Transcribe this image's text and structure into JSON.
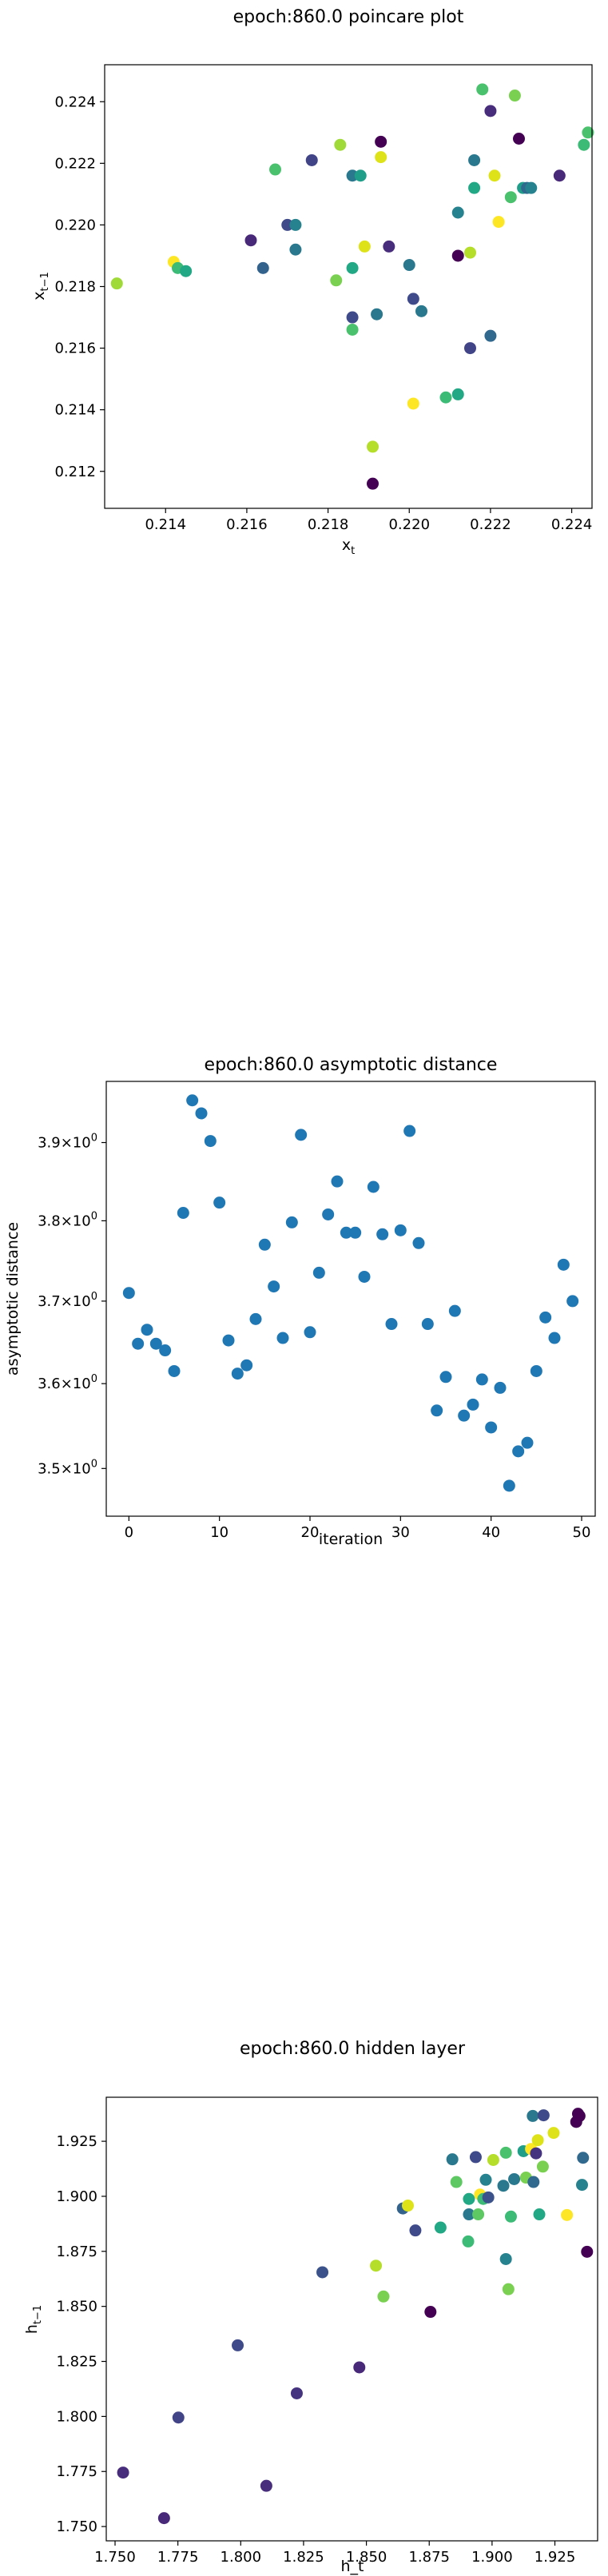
{
  "chart_data": [
    {
      "type": "scatter",
      "title": "epoch:860.0 poincare plot",
      "xlabel_main": "x",
      "xlabel_sub": "t",
      "ylabel_main": "x",
      "ylabel_sub": "t−1",
      "xlim": [
        0.2125,
        0.2245
      ],
      "ylim": [
        0.2108,
        0.2252
      ],
      "xticks": [
        0.214,
        0.216,
        0.218,
        0.22,
        0.222,
        0.224
      ],
      "xtick_labels": [
        "0.214",
        "0.216",
        "0.218",
        "0.220",
        "0.222",
        "0.224"
      ],
      "yticks": [
        0.212,
        0.214,
        0.216,
        0.218,
        0.22,
        0.222,
        0.224
      ],
      "ytick_labels": [
        "0.212",
        "0.214",
        "0.216",
        "0.218",
        "0.220",
        "0.222",
        "0.224"
      ],
      "points": [
        {
          "x": 0.2128,
          "y": 0.2181,
          "color": "#a0da39"
        },
        {
          "x": 0.2142,
          "y": 0.2188,
          "color": "#fde725"
        },
        {
          "x": 0.2143,
          "y": 0.2186,
          "color": "#3bbb75"
        },
        {
          "x": 0.2145,
          "y": 0.2185,
          "color": "#22a884"
        },
        {
          "x": 0.2161,
          "y": 0.2195,
          "color": "#482878"
        },
        {
          "x": 0.2164,
          "y": 0.2186,
          "color": "#33638d"
        },
        {
          "x": 0.2167,
          "y": 0.2218,
          "color": "#4ac16d"
        },
        {
          "x": 0.217,
          "y": 0.22,
          "color": "#3e4a89"
        },
        {
          "x": 0.2172,
          "y": 0.22,
          "color": "#26828e"
        },
        {
          "x": 0.2172,
          "y": 0.2192,
          "color": "#2a788e"
        },
        {
          "x": 0.2176,
          "y": 0.2221,
          "color": "#414487"
        },
        {
          "x": 0.2182,
          "y": 0.2182,
          "color": "#7ad151"
        },
        {
          "x": 0.2183,
          "y": 0.2226,
          "color": "#a0da39"
        },
        {
          "x": 0.2186,
          "y": 0.2216,
          "color": "#2a788e"
        },
        {
          "x": 0.2186,
          "y": 0.2166,
          "color": "#4ac16d"
        },
        {
          "x": 0.2186,
          "y": 0.217,
          "color": "#3e4a89"
        },
        {
          "x": 0.2186,
          "y": 0.2186,
          "color": "#22a884"
        },
        {
          "x": 0.2188,
          "y": 0.2216,
          "color": "#1f9e89"
        },
        {
          "x": 0.2189,
          "y": 0.2193,
          "color": "#dde318"
        },
        {
          "x": 0.2191,
          "y": 0.2116,
          "color": "#440154"
        },
        {
          "x": 0.2191,
          "y": 0.2128,
          "color": "#b5de2b"
        },
        {
          "x": 0.2192,
          "y": 0.2171,
          "color": "#2a788e"
        },
        {
          "x": 0.2193,
          "y": 0.2227,
          "color": "#440154"
        },
        {
          "x": 0.2193,
          "y": 0.2222,
          "color": "#dde318"
        },
        {
          "x": 0.2195,
          "y": 0.2193,
          "color": "#472d7b"
        },
        {
          "x": 0.22,
          "y": 0.2187,
          "color": "#2a788e"
        },
        {
          "x": 0.2201,
          "y": 0.2176,
          "color": "#3e4a89"
        },
        {
          "x": 0.2201,
          "y": 0.2142,
          "color": "#fde725"
        },
        {
          "x": 0.2203,
          "y": 0.2172,
          "color": "#2a788e"
        },
        {
          "x": 0.2209,
          "y": 0.2144,
          "color": "#3bbb75"
        },
        {
          "x": 0.2212,
          "y": 0.2145,
          "color": "#22a884"
        },
        {
          "x": 0.2212,
          "y": 0.2204,
          "color": "#26828e"
        },
        {
          "x": 0.2212,
          "y": 0.219,
          "color": "#440154"
        },
        {
          "x": 0.2215,
          "y": 0.216,
          "color": "#414487"
        },
        {
          "x": 0.2215,
          "y": 0.2191,
          "color": "#b5de2b"
        },
        {
          "x": 0.2216,
          "y": 0.2221,
          "color": "#2a788e"
        },
        {
          "x": 0.2216,
          "y": 0.2212,
          "color": "#22a884"
        },
        {
          "x": 0.2218,
          "y": 0.2244,
          "color": "#4ac16d"
        },
        {
          "x": 0.222,
          "y": 0.2237,
          "color": "#472d7b"
        },
        {
          "x": 0.222,
          "y": 0.2164,
          "color": "#31688e"
        },
        {
          "x": 0.2221,
          "y": 0.2216,
          "color": "#dde318"
        },
        {
          "x": 0.2222,
          "y": 0.2201,
          "color": "#fde725"
        },
        {
          "x": 0.2225,
          "y": 0.2209,
          "color": "#4ac16d"
        },
        {
          "x": 0.2226,
          "y": 0.2242,
          "color": "#7ad151"
        },
        {
          "x": 0.2227,
          "y": 0.2228,
          "color": "#440154"
        },
        {
          "x": 0.2228,
          "y": 0.2212,
          "color": "#1f9e89"
        },
        {
          "x": 0.2229,
          "y": 0.2212,
          "color": "#31688e"
        },
        {
          "x": 0.223,
          "y": 0.2212,
          "color": "#26828e"
        },
        {
          "x": 0.2237,
          "y": 0.2216,
          "color": "#482878"
        },
        {
          "x": 0.2243,
          "y": 0.2226,
          "color": "#3bbb75"
        },
        {
          "x": 0.2244,
          "y": 0.223,
          "color": "#4ac16d"
        }
      ]
    },
    {
      "type": "scatter",
      "title": "epoch:860.0 asymptotic distance",
      "xlabel": "iteration",
      "ylabel": "asymptotic distance",
      "yscale": "log",
      "xlim": [
        -2.5,
        51.5
      ],
      "ylim": [
        3.445,
        3.98
      ],
      "xticks": [
        0,
        10,
        20,
        30,
        40,
        50
      ],
      "xtick_labels": [
        "0",
        "10",
        "20",
        "30",
        "40",
        "50"
      ],
      "yticks": [
        3.5,
        3.6,
        3.7,
        3.8,
        3.9
      ],
      "ytick_labels": [
        "3.5",
        "3.6",
        "3.7",
        "3.8",
        "3.9"
      ],
      "ytick_mult": "×10",
      "ytick_exp": "0",
      "marker_color": "#1f77b4",
      "x": [
        0,
        1,
        2,
        3,
        4,
        5,
        6,
        7,
        8,
        9,
        10,
        11,
        12,
        13,
        14,
        15,
        16,
        17,
        18,
        19,
        20,
        21,
        22,
        23,
        24,
        25,
        26,
        27,
        28,
        29,
        30,
        31,
        32,
        33,
        34,
        35,
        36,
        37,
        38,
        39,
        40,
        41,
        42,
        43,
        44,
        45,
        46,
        47,
        48,
        49
      ],
      "y": [
        3.71,
        3.648,
        3.665,
        3.648,
        3.64,
        3.615,
        3.81,
        3.955,
        3.938,
        3.902,
        3.823,
        3.652,
        3.612,
        3.622,
        3.678,
        3.77,
        3.718,
        3.655,
        3.798,
        3.91,
        3.662,
        3.735,
        3.808,
        3.85,
        3.785,
        3.785,
        3.73,
        3.843,
        3.783,
        3.672,
        3.788,
        3.915,
        3.772,
        3.672,
        3.568,
        3.608,
        3.688,
        3.562,
        3.575,
        3.605,
        3.548,
        3.595,
        3.48,
        3.52,
        3.53,
        3.615,
        3.68,
        3.655,
        3.745,
        3.7
      ]
    },
    {
      "type": "scatter",
      "title": "epoch:860.0 hidden layer",
      "xlabel": "h_t",
      "ylabel_main": "h",
      "ylabel_sub": "t−1",
      "xlim": [
        1.7465,
        1.942
      ],
      "ylim": [
        1.7435,
        1.945
      ],
      "xticks": [
        1.75,
        1.775,
        1.8,
        1.825,
        1.85,
        1.875,
        1.9,
        1.925
      ],
      "xtick_labels": [
        "1.750",
        "1.775",
        "1.800",
        "1.825",
        "1.850",
        "1.875",
        "1.900",
        "1.925"
      ],
      "yticks": [
        1.75,
        1.775,
        1.8,
        1.825,
        1.85,
        1.875,
        1.9,
        1.925
      ],
      "ytick_labels": [
        "1.750",
        "1.775",
        "1.800",
        "1.825",
        "1.850",
        "1.875",
        "1.900",
        "1.925"
      ],
      "points": [
        {
          "x": 1.7532,
          "y": 1.7745,
          "color": "#472d7b"
        },
        {
          "x": 1.7695,
          "y": 1.7538,
          "color": "#482878"
        },
        {
          "x": 1.7752,
          "y": 1.7995,
          "color": "#414487"
        },
        {
          "x": 1.7988,
          "y": 1.8323,
          "color": "#3e4a89"
        },
        {
          "x": 1.8102,
          "y": 1.7685,
          "color": "#472d7b"
        },
        {
          "x": 1.8223,
          "y": 1.8105,
          "color": "#46337f"
        },
        {
          "x": 1.8325,
          "y": 1.8655,
          "color": "#3b528b"
        },
        {
          "x": 1.8472,
          "y": 1.8223,
          "color": "#482878"
        },
        {
          "x": 1.8538,
          "y": 1.8685,
          "color": "#b5de2b"
        },
        {
          "x": 1.8568,
          "y": 1.8545,
          "color": "#7ad151"
        },
        {
          "x": 1.8645,
          "y": 1.8945,
          "color": "#33638d"
        },
        {
          "x": 1.8665,
          "y": 1.8958,
          "color": "#dde318"
        },
        {
          "x": 1.8695,
          "y": 1.8845,
          "color": "#3e4a89"
        },
        {
          "x": 1.8755,
          "y": 1.8475,
          "color": "#440154"
        },
        {
          "x": 1.8795,
          "y": 1.8858,
          "color": "#22a884"
        },
        {
          "x": 1.8842,
          "y": 1.9168,
          "color": "#2a788e"
        },
        {
          "x": 1.8858,
          "y": 1.9065,
          "color": "#5ec962"
        },
        {
          "x": 1.8905,
          "y": 1.8795,
          "color": "#3bbb75"
        },
        {
          "x": 1.8908,
          "y": 1.8918,
          "color": "#2a788e"
        },
        {
          "x": 1.8908,
          "y": 1.8988,
          "color": "#22a884"
        },
        {
          "x": 1.8935,
          "y": 1.9178,
          "color": "#3e4a89"
        },
        {
          "x": 1.8945,
          "y": 1.8918,
          "color": "#5ec962"
        },
        {
          "x": 1.8952,
          "y": 1.9008,
          "color": "#fde725"
        },
        {
          "x": 1.8965,
          "y": 1.8988,
          "color": "#3bbb75"
        },
        {
          "x": 1.8975,
          "y": 1.9075,
          "color": "#26828e"
        },
        {
          "x": 1.8985,
          "y": 1.8995,
          "color": "#3b528b"
        },
        {
          "x": 1.9005,
          "y": 1.9165,
          "color": "#b5de2b"
        },
        {
          "x": 1.9045,
          "y": 1.9048,
          "color": "#2a788e"
        },
        {
          "x": 1.9055,
          "y": 1.8715,
          "color": "#26828e"
        },
        {
          "x": 1.9055,
          "y": 1.9198,
          "color": "#4ac16d"
        },
        {
          "x": 1.9065,
          "y": 1.8578,
          "color": "#7ad151"
        },
        {
          "x": 1.9075,
          "y": 1.8908,
          "color": "#3bbb75"
        },
        {
          "x": 1.9088,
          "y": 1.9078,
          "color": "#2a788e"
        },
        {
          "x": 1.9125,
          "y": 1.9205,
          "color": "#1f9e89"
        },
        {
          "x": 1.9135,
          "y": 1.9085,
          "color": "#7ad151"
        },
        {
          "x": 1.9155,
          "y": 1.9215,
          "color": "#fde725"
        },
        {
          "x": 1.9162,
          "y": 1.9365,
          "color": "#2a788e"
        },
        {
          "x": 1.9165,
          "y": 1.9065,
          "color": "#31688e"
        },
        {
          "x": 1.9175,
          "y": 1.9195,
          "color": "#46337f"
        },
        {
          "x": 1.9182,
          "y": 1.9255,
          "color": "#dde318"
        },
        {
          "x": 1.9188,
          "y": 1.8918,
          "color": "#22a884"
        },
        {
          "x": 1.9202,
          "y": 1.9135,
          "color": "#7ad151"
        },
        {
          "x": 1.9205,
          "y": 1.9368,
          "color": "#3e4a89"
        },
        {
          "x": 1.9245,
          "y": 1.9288,
          "color": "#dde318"
        },
        {
          "x": 1.9298,
          "y": 1.8915,
          "color": "#fde725"
        },
        {
          "x": 1.9335,
          "y": 1.9338,
          "color": "#440154"
        },
        {
          "x": 1.9342,
          "y": 1.9375,
          "color": "#440154"
        },
        {
          "x": 1.9348,
          "y": 1.9365,
          "color": "#440154"
        },
        {
          "x": 1.9358,
          "y": 1.9052,
          "color": "#26828e"
        },
        {
          "x": 1.9362,
          "y": 1.9175,
          "color": "#31688e"
        },
        {
          "x": 1.9378,
          "y": 1.8748,
          "color": "#440154"
        }
      ]
    }
  ]
}
